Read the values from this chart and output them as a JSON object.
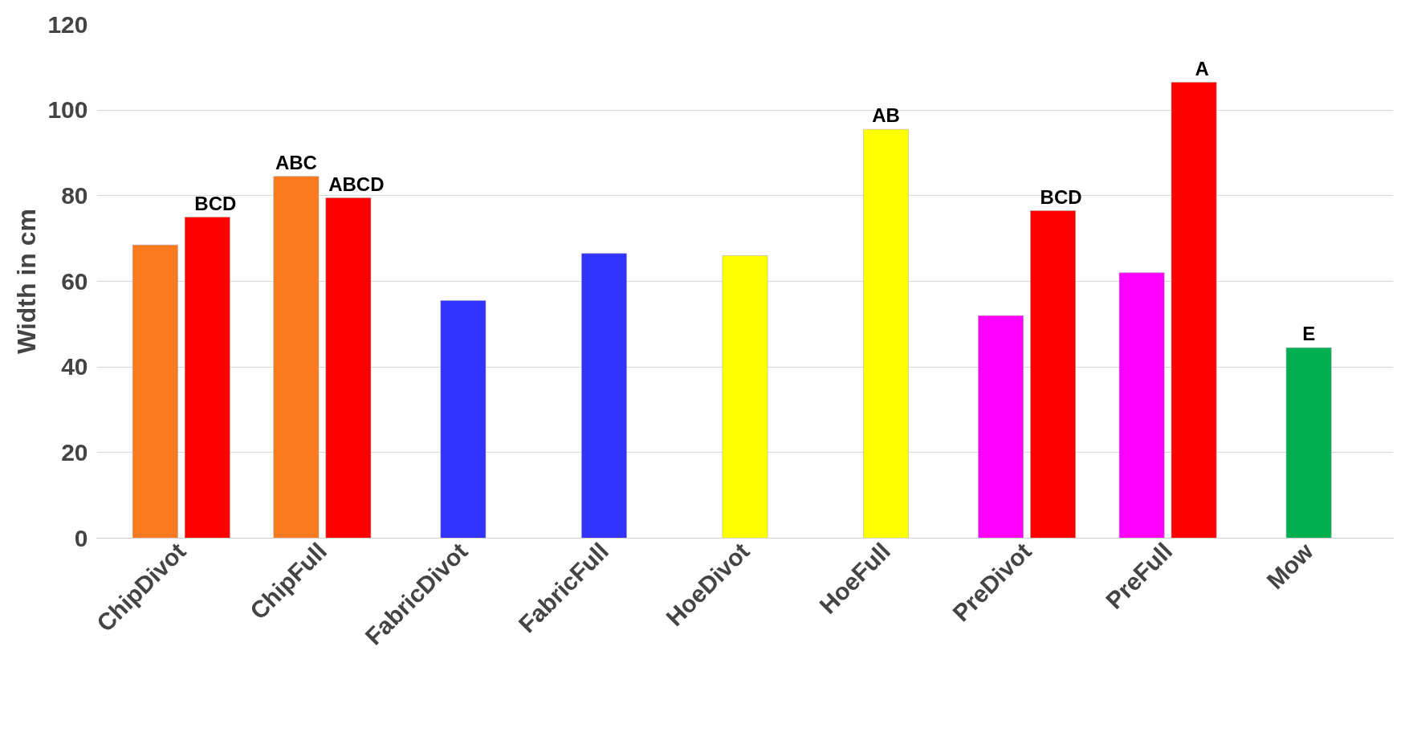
{
  "chart_data": {
    "type": "bar",
    "ylabel": "Width in cm",
    "categories": [
      "ChipDivot",
      "ChipFull",
      "FabricDivot",
      "FabricFull",
      "HoeDivot",
      "HoeFull",
      "PreDivot",
      "PreFull",
      "Mow"
    ],
    "series": [
      {
        "colors": [
          "#f97a1f",
          "#f97a1f",
          "#3333ff",
          "#3333ff",
          "#ffff00",
          "#ffff00",
          "#ff00ff",
          "#ff00ff",
          "#00b050"
        ],
        "values": [
          68.5,
          84.5,
          55.5,
          66.5,
          66,
          95.5,
          52,
          62,
          44.5
        ],
        "value_labels": [
          null,
          "ABC",
          null,
          null,
          null,
          "AB",
          null,
          null,
          "E"
        ]
      },
      {
        "color": "#ff0000",
        "values": [
          75,
          79.5,
          null,
          null,
          null,
          null,
          76.5,
          106.5,
          null
        ],
        "value_labels": [
          "BCD",
          "ABCD",
          null,
          null,
          null,
          null,
          "BCD",
          "A",
          null
        ]
      }
    ],
    "ylim": [
      0,
      120
    ],
    "yticks": [
      0,
      20,
      40,
      60,
      80,
      100,
      120
    ],
    "grid": "y"
  }
}
